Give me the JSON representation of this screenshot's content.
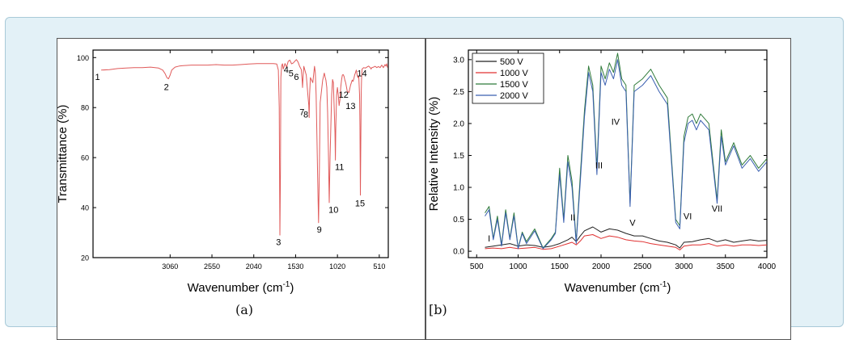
{
  "chart_data": [
    {
      "panel": "a",
      "type": "line",
      "caption": "(a)",
      "xlabel": "Wavenumber (cm",
      "xlabel_sup": "-1",
      "xlabel_end": ")",
      "ylabel": "Transmittance (%)",
      "xlim": [
        4000,
        400
      ],
      "ylim": [
        20,
        103
      ],
      "xticks": [
        3060,
        2550,
        2040,
        1530,
        1020,
        510
      ],
      "yticks": [
        20,
        40,
        60,
        80,
        100
      ],
      "series": [
        {
          "color": "#e05a5a",
          "x": [
            3900,
            3800,
            3700,
            3600,
            3500,
            3400,
            3300,
            3200,
            3150,
            3120,
            3100,
            3080,
            3060,
            3040,
            3000,
            2950,
            2900,
            2800,
            2700,
            2600,
            2500,
            2400,
            2300,
            2200,
            2100,
            2000,
            1900,
            1800,
            1760,
            1740,
            1730,
            1722,
            1715,
            1710,
            1700,
            1690,
            1680,
            1660,
            1640,
            1620,
            1600,
            1580,
            1560,
            1540,
            1520,
            1500,
            1480,
            1460,
            1450,
            1445,
            1440,
            1430,
            1400,
            1380,
            1370,
            1365,
            1360,
            1350,
            1320,
            1300,
            1290,
            1280,
            1270,
            1260,
            1250,
            1240,
            1230,
            1200,
            1180,
            1170,
            1160,
            1150,
            1140,
            1130,
            1120,
            1110,
            1090,
            1080,
            1070,
            1060,
            1050,
            1045,
            1040,
            1030,
            1020,
            1010,
            1000,
            990,
            980,
            970,
            960,
            950,
            940,
            930,
            920,
            900,
            880,
            860,
            840,
            830,
            820,
            810,
            790,
            780,
            770,
            760,
            750,
            745,
            740,
            735,
            730,
            725,
            720,
            700,
            680,
            660,
            640,
            620,
            610,
            600,
            580,
            560,
            540,
            520,
            500,
            480,
            460,
            440,
            430,
            420,
            410
          ],
          "y": [
            95,
            95.2,
            95.6,
            95.8,
            96,
            96,
            96.2,
            95.8,
            95,
            93.5,
            92,
            91.5,
            93,
            95,
            96.2,
            96.6,
            96.8,
            97,
            97,
            97,
            97.2,
            97,
            97,
            97.2,
            97.4,
            97.6,
            97.6,
            97.6,
            97.4,
            95,
            80,
            29,
            55,
            92,
            96.8,
            97.5,
            95.4,
            97.6,
            96.2,
            98.5,
            99,
            97.5,
            97.8,
            98.5,
            99.2,
            98.2,
            96.4,
            95.2,
            91,
            88,
            92,
            96.5,
            93,
            85,
            81,
            76,
            85,
            92,
            90,
            96.5,
            94,
            85,
            68,
            50,
            34,
            55,
            82,
            91,
            93.8,
            92.2,
            91,
            88,
            78,
            62,
            42,
            60,
            85,
            91.2,
            90,
            80,
            70,
            59,
            72,
            85,
            88,
            85,
            80.8,
            83,
            88,
            91,
            93,
            93.2,
            92.5,
            91,
            90,
            86.5,
            86,
            89,
            91,
            90.5,
            91.5,
            93,
            95,
            93,
            92,
            92.5,
            85,
            72,
            45,
            65,
            85,
            92,
            95.4,
            96,
            95.8,
            96.2,
            96.6,
            96,
            95.4,
            96,
            96.2,
            96.5,
            96,
            96.4,
            96,
            97,
            96,
            97.2,
            96.6,
            97.5,
            96
          ]
        }
      ],
      "annotations": [
        {
          "label": "1",
          "x": 3945,
          "y": 91
        },
        {
          "label": "2",
          "x": 3105,
          "y": 87
        },
        {
          "label": "3",
          "x": 1738,
          "y": 25
        },
        {
          "label": "4",
          "x": 1645,
          "y": 94
        },
        {
          "label": "5",
          "x": 1585,
          "y": 92.5
        },
        {
          "label": "6",
          "x": 1520,
          "y": 91
        },
        {
          "label": "7",
          "x": 1452,
          "y": 77
        },
        {
          "label": "8",
          "x": 1405,
          "y": 76
        },
        {
          "label": "9",
          "x": 1242,
          "y": 30
        },
        {
          "label": "10",
          "x": 1068,
          "y": 38
        },
        {
          "label": "11",
          "x": 995,
          "y": 55
        },
        {
          "label": "12",
          "x": 945,
          "y": 84
        },
        {
          "label": "13",
          "x": 860,
          "y": 79.5
        },
        {
          "label": "14",
          "x": 720,
          "y": 92.5
        },
        {
          "label": "15",
          "x": 745,
          "y": 40.5
        }
      ]
    },
    {
      "panel": "b",
      "type": "line",
      "caption": "[b)",
      "xlabel": "Wavenumber (cm",
      "xlabel_sup": "-1",
      "xlabel_end": ")",
      "ylabel": "Relative Intensity (%)",
      "xlim": [
        400,
        4000
      ],
      "ylim": [
        -0.1,
        3.15
      ],
      "xticks": [
        500,
        1000,
        1500,
        2000,
        2500,
        3000,
        3500,
        4000
      ],
      "yticks": [
        0.0,
        0.5,
        1.0,
        1.5,
        2.0,
        2.5,
        3.0
      ],
      "ytick_labels": [
        "0.0",
        "0.5",
        "1.0",
        "1.5",
        "2.0",
        "2.5",
        "3.0"
      ],
      "legend_position": "top-left",
      "series": [
        {
          "name": "500 V",
          "color": "#222222",
          "x": [
            600,
            700,
            800,
            900,
            1000,
            1100,
            1200,
            1300,
            1400,
            1500,
            1600,
            1650,
            1700,
            1750,
            1800,
            1900,
            2000,
            2100,
            2200,
            2300,
            2400,
            2500,
            2600,
            2700,
            2800,
            2900,
            2950,
            3000,
            3100,
            3200,
            3300,
            3400,
            3500,
            3600,
            3700,
            3800,
            3900,
            4000
          ],
          "y": [
            0.06,
            0.08,
            0.1,
            0.12,
            0.08,
            0.1,
            0.09,
            0.06,
            0.08,
            0.12,
            0.18,
            0.22,
            0.15,
            0.24,
            0.32,
            0.38,
            0.3,
            0.35,
            0.33,
            0.28,
            0.24,
            0.24,
            0.2,
            0.16,
            0.14,
            0.1,
            0.05,
            0.14,
            0.15,
            0.18,
            0.2,
            0.15,
            0.18,
            0.14,
            0.16,
            0.18,
            0.16,
            0.17
          ]
        },
        {
          "name": "1000 V",
          "color": "#e03030",
          "x": [
            600,
            700,
            800,
            900,
            1000,
            1100,
            1200,
            1300,
            1400,
            1500,
            1600,
            1650,
            1700,
            1750,
            1800,
            1900,
            2000,
            2100,
            2200,
            2300,
            2400,
            2500,
            2600,
            2700,
            2800,
            2900,
            2950,
            3000,
            3100,
            3200,
            3300,
            3400,
            3500,
            3600,
            3700,
            3800,
            3900,
            4000
          ],
          "y": [
            0.04,
            0.05,
            0.04,
            0.06,
            0.04,
            0.05,
            0.06,
            0.03,
            0.04,
            0.08,
            0.12,
            0.14,
            0.1,
            0.16,
            0.24,
            0.26,
            0.2,
            0.24,
            0.22,
            0.18,
            0.16,
            0.15,
            0.12,
            0.1,
            0.08,
            0.06,
            0.02,
            0.08,
            0.1,
            0.1,
            0.12,
            0.08,
            0.1,
            0.08,
            0.1,
            0.1,
            0.09,
            0.1
          ]
        },
        {
          "name": "1500 V",
          "color": "#2f7a3a",
          "x": [
            600,
            650,
            700,
            750,
            800,
            850,
            900,
            950,
            1000,
            1050,
            1100,
            1200,
            1300,
            1400,
            1450,
            1500,
            1550,
            1600,
            1650,
            1700,
            1750,
            1800,
            1850,
            1900,
            1950,
            2000,
            2050,
            2100,
            2150,
            2200,
            2250,
            2300,
            2350,
            2400,
            2500,
            2600,
            2700,
            2800,
            2900,
            2950,
            3000,
            3050,
            3100,
            3150,
            3200,
            3300,
            3400,
            3450,
            3500,
            3600,
            3700,
            3800,
            3900,
            4000
          ],
          "y": [
            0.6,
            0.7,
            0.2,
            0.55,
            0.1,
            0.65,
            0.2,
            0.6,
            0.05,
            0.3,
            0.15,
            0.35,
            0.05,
            0.2,
            0.3,
            1.3,
            0.5,
            1.5,
            1.1,
            0.15,
            1.2,
            2.2,
            2.9,
            2.6,
            1.3,
            2.9,
            2.7,
            2.95,
            2.8,
            3.1,
            2.7,
            2.6,
            0.75,
            2.6,
            2.7,
            2.85,
            2.6,
            2.4,
            0.5,
            0.4,
            1.8,
            2.1,
            2.15,
            2.0,
            2.15,
            2.0,
            0.8,
            1.9,
            1.4,
            1.7,
            1.35,
            1.5,
            1.3,
            1.45
          ]
        },
        {
          "name": "2000 V",
          "color": "#3a5fb0",
          "x": [
            600,
            650,
            700,
            750,
            800,
            850,
            900,
            950,
            1000,
            1050,
            1100,
            1200,
            1300,
            1400,
            1450,
            1500,
            1550,
            1600,
            1650,
            1700,
            1750,
            1800,
            1850,
            1900,
            1950,
            2000,
            2050,
            2100,
            2150,
            2200,
            2250,
            2300,
            2350,
            2400,
            2500,
            2600,
            2700,
            2800,
            2900,
            2950,
            3000,
            3050,
            3100,
            3150,
            3200,
            3300,
            3400,
            3450,
            3500,
            3600,
            3700,
            3800,
            3900,
            4000
          ],
          "y": [
            0.55,
            0.65,
            0.18,
            0.5,
            0.08,
            0.6,
            0.18,
            0.55,
            0.04,
            0.28,
            0.12,
            0.32,
            0.04,
            0.18,
            0.28,
            1.2,
            0.45,
            1.4,
            1.0,
            0.12,
            1.1,
            2.1,
            2.8,
            2.5,
            1.2,
            2.8,
            2.6,
            2.85,
            2.7,
            3.0,
            2.6,
            2.5,
            0.7,
            2.5,
            2.6,
            2.75,
            2.5,
            2.3,
            0.45,
            0.35,
            1.7,
            2.0,
            2.05,
            1.9,
            2.05,
            1.9,
            0.75,
            1.8,
            1.35,
            1.65,
            1.3,
            1.45,
            1.25,
            1.4
          ]
        }
      ],
      "annotations": [
        {
          "label": "I",
          "x": 650,
          "y": 0.15
        },
        {
          "label": "II",
          "x": 1660,
          "y": 0.48
        },
        {
          "label": "III",
          "x": 1975,
          "y": 1.3
        },
        {
          "label": "IV",
          "x": 2175,
          "y": 1.98
        },
        {
          "label": "V",
          "x": 2380,
          "y": 0.4
        },
        {
          "label": "VI",
          "x": 3045,
          "y": 0.5
        },
        {
          "label": "VII",
          "x": 3400,
          "y": 0.62
        }
      ]
    }
  ]
}
